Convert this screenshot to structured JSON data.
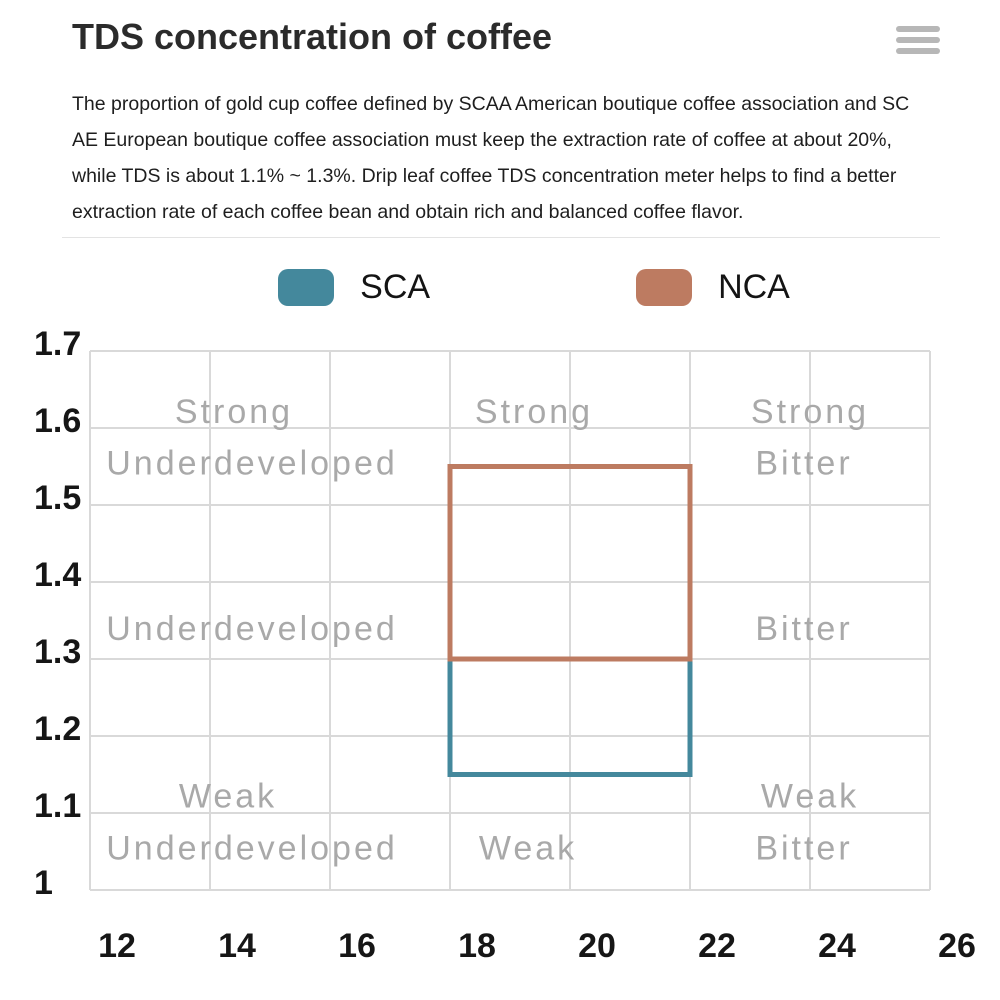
{
  "page": {
    "title": "TDS concentration of coffee",
    "description_lines": [
      "The proportion of gold cup coffee defined by SCAA American boutique coffee association and SC",
      "AE European boutique coffee association must keep the extraction rate of coffee at about 20%,",
      "while TDS is about 1.1% ~ 1.3%. Drip leaf coffee TDS concentration meter helps to find a better",
      "extraction rate of each coffee bean and obtain rich and balanced coffee flavor."
    ]
  },
  "chart_data": {
    "type": "area",
    "title": "TDS concentration of coffee",
    "xlabel": "",
    "ylabel": "",
    "xlim": [
      12,
      26
    ],
    "ylim": [
      1.0,
      1.7
    ],
    "x_ticks": [
      "12",
      "14",
      "16",
      "18",
      "20",
      "22",
      "24",
      "26"
    ],
    "y_ticks": [
      "1.7",
      "1.6",
      "1.5",
      "1.4",
      "1.3",
      "1.2",
      "1.1",
      "1"
    ],
    "grid": true,
    "legend_position": "top",
    "series": [
      {
        "name": "SCA",
        "color": "#44889c",
        "shape": "rect",
        "x0": 18,
        "x1": 22,
        "y0": 1.15,
        "y1": 1.3
      },
      {
        "name": "NCA",
        "color": "#bd7b61",
        "shape": "rect",
        "x0": 18,
        "x1": 22,
        "y0": 1.3,
        "y1": 1.55
      }
    ],
    "annotations": [
      {
        "text": "Strong",
        "x": 14.4,
        "y": 1.622
      },
      {
        "text": "Underdeveloped",
        "x": 14.7,
        "y": 1.555
      },
      {
        "text": "Strong",
        "x": 19.4,
        "y": 1.622
      },
      {
        "text": "Strong",
        "x": 24.0,
        "y": 1.622
      },
      {
        "text": "Bitter",
        "x": 23.9,
        "y": 1.555
      },
      {
        "text": "Underdeveloped",
        "x": 14.7,
        "y": 1.34
      },
      {
        "text": "Bitter",
        "x": 23.9,
        "y": 1.34
      },
      {
        "text": "Weak",
        "x": 14.3,
        "y": 1.123
      },
      {
        "text": "Weak",
        "x": 24.0,
        "y": 1.123
      },
      {
        "text": "Underdeveloped",
        "x": 14.7,
        "y": 1.055
      },
      {
        "text": "Weak",
        "x": 19.3,
        "y": 1.055
      },
      {
        "text": "Bitter",
        "x": 23.9,
        "y": 1.055
      }
    ]
  }
}
